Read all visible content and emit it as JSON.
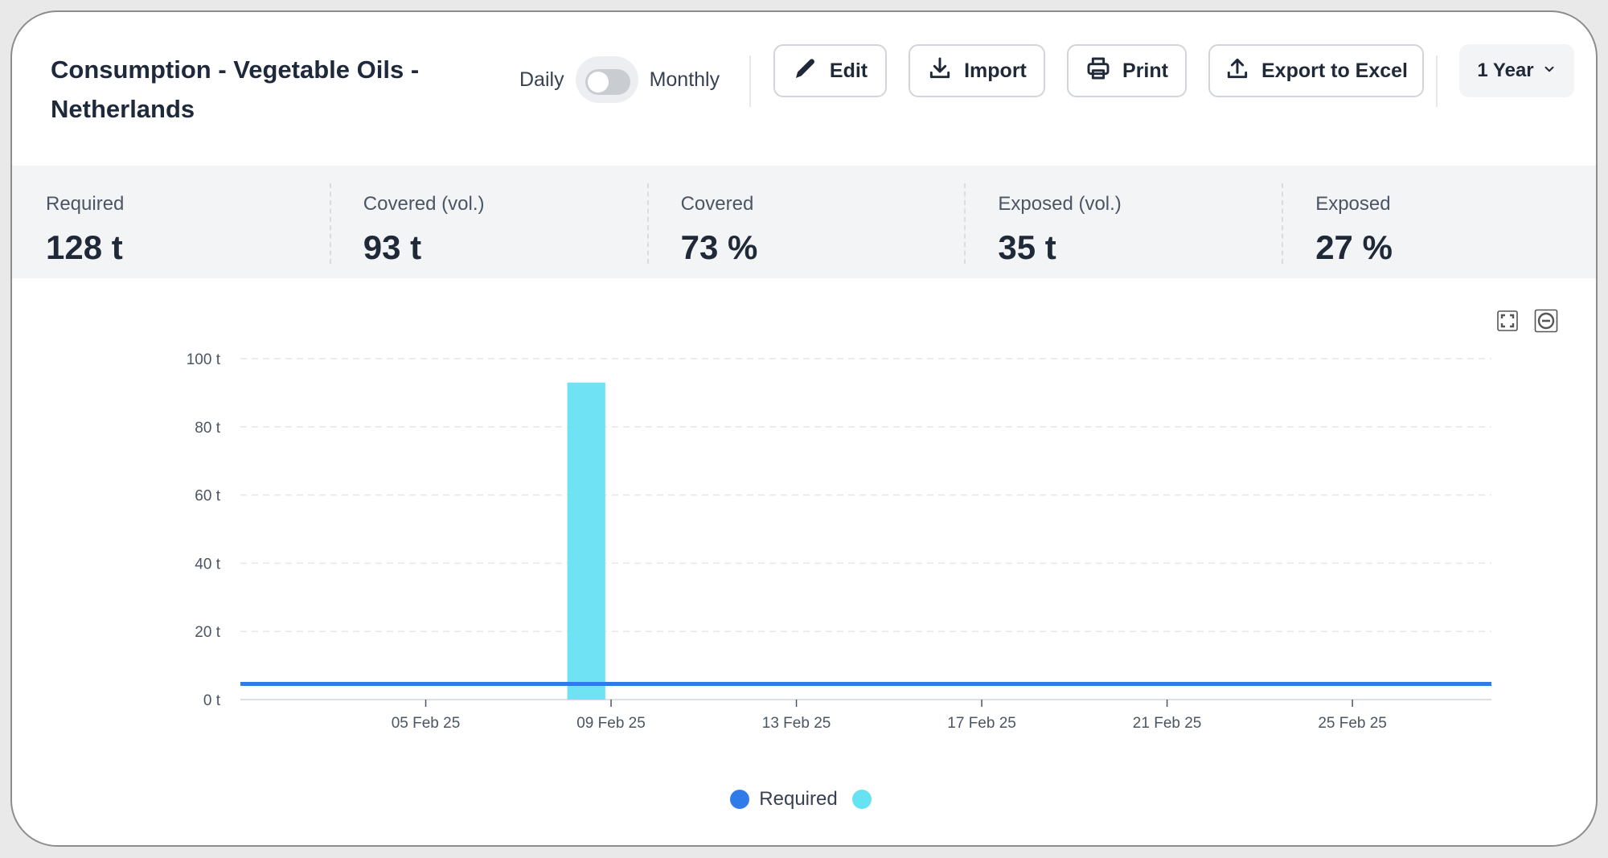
{
  "header": {
    "title": "Consumption - Vegetable Oils - Netherlands",
    "toggle": {
      "left_label": "Daily",
      "right_label": "Monthly",
      "state": "off"
    },
    "buttons": {
      "edit": "Edit",
      "import": "Import",
      "print": "Print",
      "export": "Export to Excel"
    },
    "range": {
      "selected": "1 Year"
    }
  },
  "stats": [
    {
      "label": "Required",
      "value": "128 t"
    },
    {
      "label": "Covered (vol.)",
      "value": "93 t"
    },
    {
      "label": "Covered",
      "value": "73 %"
    },
    {
      "label": "Exposed (vol.)",
      "value": "35 t"
    },
    {
      "label": "Exposed",
      "value": "27 %"
    }
  ],
  "icons": {
    "edit": "pencil-icon",
    "import": "download-icon",
    "print": "printer-icon",
    "export": "upload-icon",
    "range": "chevron-down-icon",
    "fullscreen": "fullscreen-icon",
    "reset_zoom": "zoom-reset-icon"
  },
  "colors": {
    "required": "#2f7be8",
    "covered": "#67e2f3",
    "grid": "#e3e6ea",
    "axis_text": "#4b5563"
  },
  "chart_data": {
    "type": "bar",
    "x_axis_type": "date",
    "x_start": "2025-02-01",
    "x_end": "2025-02-28",
    "x_ticks": [
      "05 Feb 25",
      "09 Feb 25",
      "13 Feb 25",
      "17 Feb 25",
      "21 Feb 25",
      "25 Feb 25"
    ],
    "ylim": [
      0,
      100
    ],
    "y_ticks": [
      "0 t",
      "20 t",
      "40 t",
      "60 t",
      "80 t",
      "100 t"
    ],
    "y_unit": "t",
    "grid": true,
    "legend_placement": "bottom-center",
    "series": [
      {
        "name": "Required",
        "type": "line",
        "color": "#2f7be8",
        "points": [
          [
            "2025-02-01",
            4.6
          ],
          [
            "2025-02-28",
            4.6
          ]
        ]
      },
      {
        "name": "",
        "type": "bar",
        "color": "#67e2f3",
        "points": [
          [
            "2025-02-08",
            93
          ]
        ]
      }
    ]
  }
}
